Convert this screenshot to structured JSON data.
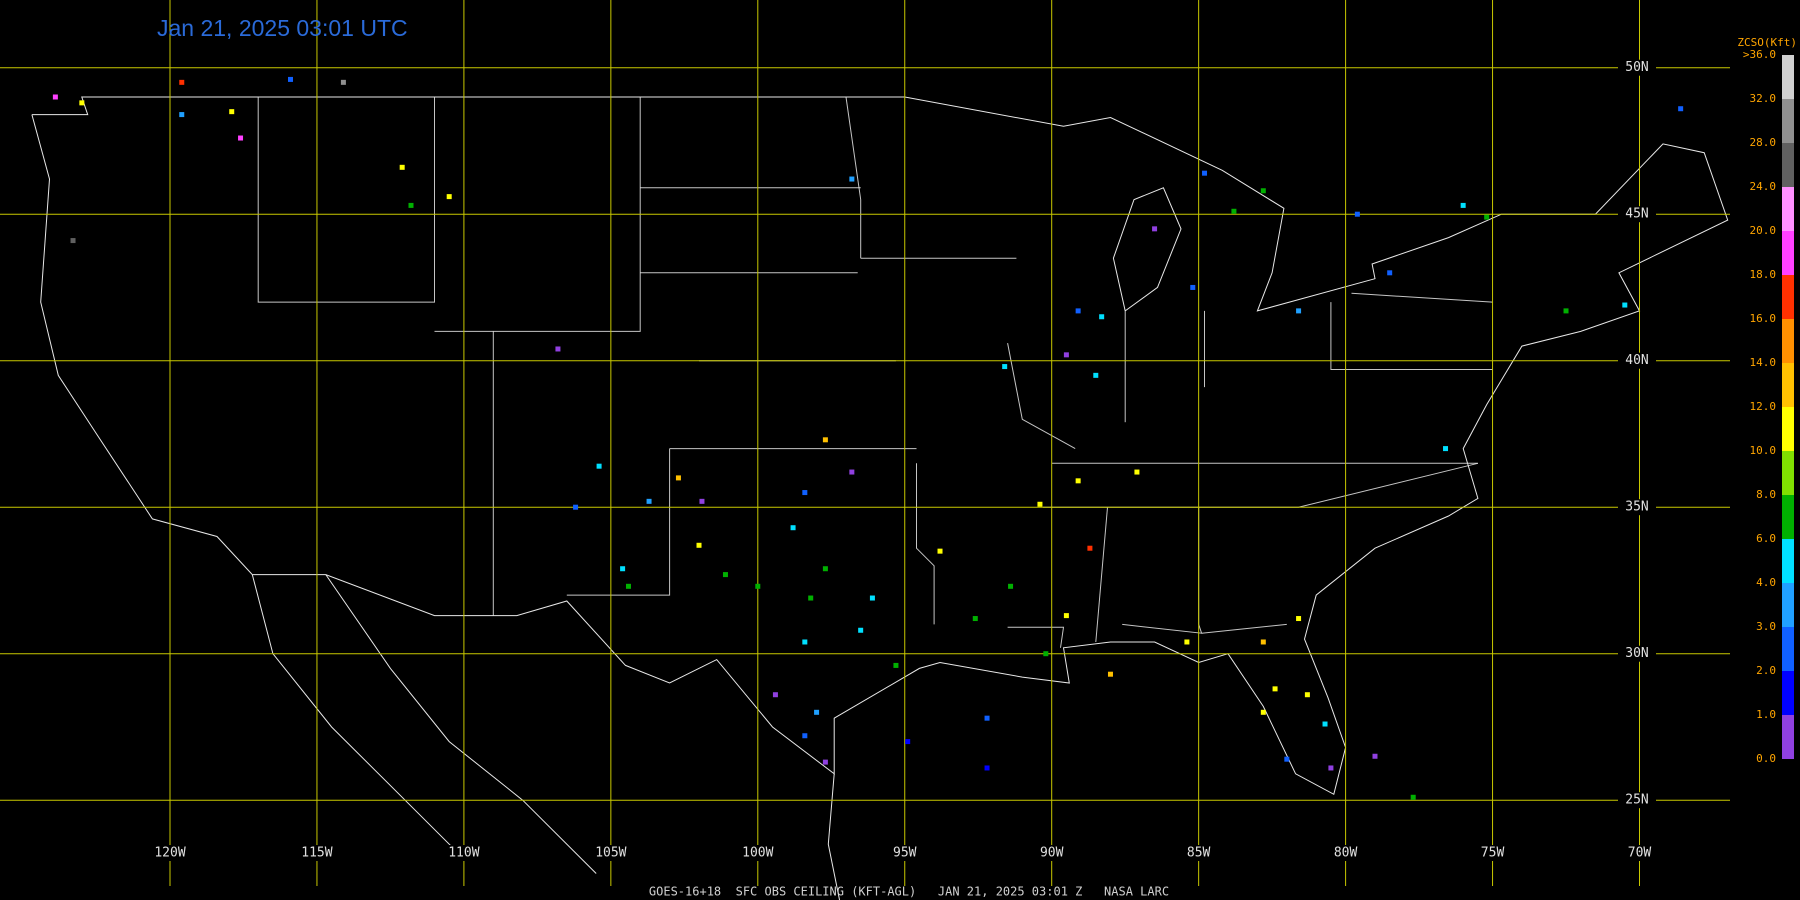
{
  "title": "Jan 21, 2025 03:01 UTC",
  "footer": "GOES-16+18  SFC OBS CEILING (KFT-AGL)   JAN 21, 2025 03:01 Z   NASA LARC",
  "lat_ticks": [
    {
      "value": 50,
      "label": "50N"
    },
    {
      "value": 45,
      "label": "45N"
    },
    {
      "value": 40,
      "label": "40N"
    },
    {
      "value": 35,
      "label": "35N"
    },
    {
      "value": 30,
      "label": "30N"
    },
    {
      "value": 25,
      "label": "25N"
    }
  ],
  "lon_ticks": [
    {
      "value": -120,
      "label": "120W"
    },
    {
      "value": -115,
      "label": "115W"
    },
    {
      "value": -110,
      "label": "110W"
    },
    {
      "value": -105,
      "label": "105W"
    },
    {
      "value": -100,
      "label": "100W"
    },
    {
      "value": -95,
      "label": "95W"
    },
    {
      "value": -90,
      "label": "90W"
    },
    {
      "value": -85,
      "label": "85W"
    },
    {
      "value": -80,
      "label": "80W"
    },
    {
      "value": -75,
      "label": "75W"
    },
    {
      "value": -70,
      "label": "70W"
    }
  ],
  "grid_color": "#c8c800",
  "colorbar": {
    "title": "ZCSO(Kft)",
    "ticks": [
      {
        "value": 0,
        "label": "0.0"
      },
      {
        "value": 1,
        "label": "1.0"
      },
      {
        "value": 2,
        "label": "2.0"
      },
      {
        "value": 3,
        "label": "3.0"
      },
      {
        "value": 4,
        "label": "4.0"
      },
      {
        "value": 6,
        "label": "6.0"
      },
      {
        "value": 8,
        "label": "8.0"
      },
      {
        "value": 10,
        "label": "10.0"
      },
      {
        "value": 12,
        "label": "12.0"
      },
      {
        "value": 14,
        "label": "14.0"
      },
      {
        "value": 16,
        "label": "16.0"
      },
      {
        "value": 18,
        "label": "18.0"
      },
      {
        "value": 20,
        "label": "20.0"
      },
      {
        "value": 24,
        "label": "24.0"
      },
      {
        "value": 28,
        "label": "28.0"
      },
      {
        "value": 32,
        "label": "32.0"
      },
      {
        "value": 36,
        "label": ">36.0"
      }
    ],
    "colors": [
      "#9040e0",
      "#0000ff",
      "#1060ff",
      "#20a0ff",
      "#00e0ff",
      "#00b000",
      "#80e000",
      "#ffff00",
      "#ffc000",
      "#ff9000",
      "#ff3000",
      "#ff40ff",
      "#ff90ff",
      "#606060",
      "#909090",
      "#d0d0d0"
    ]
  },
  "stations": [
    {
      "lon": -123.0,
      "lat": 48.8,
      "ceiling": 11
    },
    {
      "lon": -123.9,
      "lat": 49.0,
      "ceiling": 19
    },
    {
      "lon": -119.6,
      "lat": 49.5,
      "ceiling": 17
    },
    {
      "lon": -115.9,
      "lat": 49.6,
      "ceiling": 2.5
    },
    {
      "lon": -114.1,
      "lat": 49.5,
      "ceiling": 30
    },
    {
      "lon": -117.9,
      "lat": 48.5,
      "ceiling": 11
    },
    {
      "lon": -117.6,
      "lat": 47.6,
      "ceiling": 19
    },
    {
      "lon": -119.6,
      "lat": 48.4,
      "ceiling": 3.5
    },
    {
      "lon": -123.3,
      "lat": 44.1,
      "ceiling": 26
    },
    {
      "lon": -112.1,
      "lat": 46.6,
      "ceiling": 11
    },
    {
      "lon": -110.5,
      "lat": 45.6,
      "ceiling": 11
    },
    {
      "lon": -111.8,
      "lat": 45.3,
      "ceiling": 7
    },
    {
      "lon": -106.8,
      "lat": 40.4,
      "ceiling": 0.5
    },
    {
      "lon": -96.8,
      "lat": 46.2,
      "ceiling": 3.5
    },
    {
      "lon": -105.4,
      "lat": 36.4,
      "ceiling": 5
    },
    {
      "lon": -106.2,
      "lat": 35.0,
      "ceiling": 2.5
    },
    {
      "lon": -103.7,
      "lat": 35.2,
      "ceiling": 3.5
    },
    {
      "lon": -101.9,
      "lat": 35.2,
      "ceiling": 0.5
    },
    {
      "lon": -102.7,
      "lat": 36.0,
      "ceiling": 13
    },
    {
      "lon": -102.0,
      "lat": 33.7,
      "ceiling": 11
    },
    {
      "lon": -104.6,
      "lat": 32.9,
      "ceiling": 5
    },
    {
      "lon": -104.4,
      "lat": 32.3,
      "ceiling": 7
    },
    {
      "lon": -101.1,
      "lat": 32.7,
      "ceiling": 7
    },
    {
      "lon": -98.4,
      "lat": 35.5,
      "ceiling": 2.5
    },
    {
      "lon": -97.7,
      "lat": 37.3,
      "ceiling": 13
    },
    {
      "lon": -96.8,
      "lat": 36.2,
      "ceiling": 0.5
    },
    {
      "lon": -98.8,
      "lat": 34.3,
      "ceiling": 5
    },
    {
      "lon": -97.7,
      "lat": 32.9,
      "ceiling": 7
    },
    {
      "lon": -98.2,
      "lat": 31.9,
      "ceiling": 7
    },
    {
      "lon": -96.1,
      "lat": 31.9,
      "ceiling": 5
    },
    {
      "lon": -96.5,
      "lat": 30.8,
      "ceiling": 5
    },
    {
      "lon": -98.4,
      "lat": 30.4,
      "ceiling": 5
    },
    {
      "lon": -100.0,
      "lat": 32.3,
      "ceiling": 7
    },
    {
      "lon": -95.3,
      "lat": 29.6,
      "ceiling": 7
    },
    {
      "lon": -98.0,
      "lat": 28.0,
      "ceiling": 3.5
    },
    {
      "lon": -99.4,
      "lat": 28.6,
      "ceiling": 0.5
    },
    {
      "lon": -97.7,
      "lat": 26.3,
      "ceiling": 0.5
    },
    {
      "lon": -98.4,
      "lat": 27.2,
      "ceiling": 2.5
    },
    {
      "lon": -94.9,
      "lat": 27.0,
      "ceiling": 1.5
    },
    {
      "lon": -92.2,
      "lat": 26.1,
      "ceiling": 1.5
    },
    {
      "lon": -92.2,
      "lat": 27.8,
      "ceiling": 2.5
    },
    {
      "lon": -93.8,
      "lat": 33.5,
      "ceiling": 11
    },
    {
      "lon": -92.6,
      "lat": 31.2,
      "ceiling": 7
    },
    {
      "lon": -91.4,
      "lat": 32.3,
      "ceiling": 7
    },
    {
      "lon": -90.4,
      "lat": 35.1,
      "ceiling": 11
    },
    {
      "lon": -89.1,
      "lat": 35.9,
      "ceiling": 11
    },
    {
      "lon": -88.7,
      "lat": 33.6,
      "ceiling": 17
    },
    {
      "lon": -89.5,
      "lat": 31.3,
      "ceiling": 11
    },
    {
      "lon": -90.2,
      "lat": 30.0,
      "ceiling": 7
    },
    {
      "lon": -88.0,
      "lat": 29.3,
      "ceiling": 13
    },
    {
      "lon": -89.1,
      "lat": 41.7,
      "ceiling": 2.5
    },
    {
      "lon": -88.3,
      "lat": 41.5,
      "ceiling": 5
    },
    {
      "lon": -89.5,
      "lat": 40.2,
      "ceiling": 0.5
    },
    {
      "lon": -91.6,
      "lat": 39.8,
      "ceiling": 5
    },
    {
      "lon": -88.5,
      "lat": 39.5,
      "ceiling": 5
    },
    {
      "lon": -87.1,
      "lat": 36.2,
      "ceiling": 11
    },
    {
      "lon": -85.2,
      "lat": 42.5,
      "ceiling": 2.5
    },
    {
      "lon": -84.8,
      "lat": 46.4,
      "ceiling": 2.5
    },
    {
      "lon": -83.8,
      "lat": 45.1,
      "ceiling": 7
    },
    {
      "lon": -82.8,
      "lat": 45.8,
      "ceiling": 7
    },
    {
      "lon": -86.5,
      "lat": 44.5,
      "ceiling": 0.5
    },
    {
      "lon": -81.6,
      "lat": 41.7,
      "ceiling": 3.5
    },
    {
      "lon": -78.5,
      "lat": 43.0,
      "ceiling": 2.5
    },
    {
      "lon": -79.6,
      "lat": 45.0,
      "ceiling": 2.5
    },
    {
      "lon": -76.0,
      "lat": 45.3,
      "ceiling": 5
    },
    {
      "lon": -75.2,
      "lat": 44.9,
      "ceiling": 7
    },
    {
      "lon": -72.5,
      "lat": 41.7,
      "ceiling": 7
    },
    {
      "lon": -70.5,
      "lat": 41.9,
      "ceiling": 5
    },
    {
      "lon": -68.6,
      "lat": 48.6,
      "ceiling": 2.5
    },
    {
      "lon": -76.6,
      "lat": 37.0,
      "ceiling": 5
    },
    {
      "lon": -85.4,
      "lat": 30.4,
      "ceiling": 11
    },
    {
      "lon": -82.8,
      "lat": 30.4,
      "ceiling": 13
    },
    {
      "lon": -81.6,
      "lat": 31.2,
      "ceiling": 11
    },
    {
      "lon": -82.4,
      "lat": 28.8,
      "ceiling": 11
    },
    {
      "lon": -81.3,
      "lat": 28.6,
      "ceiling": 11
    },
    {
      "lon": -82.8,
      "lat": 28.0,
      "ceiling": 11
    },
    {
      "lon": -82.0,
      "lat": 26.4,
      "ceiling": 2.5
    },
    {
      "lon": -80.7,
      "lat": 27.6,
      "ceiling": 5
    },
    {
      "lon": -80.5,
      "lat": 26.1,
      "ceiling": 0.5
    },
    {
      "lon": -79.0,
      "lat": 26.5,
      "ceiling": 0.5
    },
    {
      "lon": -77.7,
      "lat": 25.1,
      "ceiling": 7
    }
  ]
}
